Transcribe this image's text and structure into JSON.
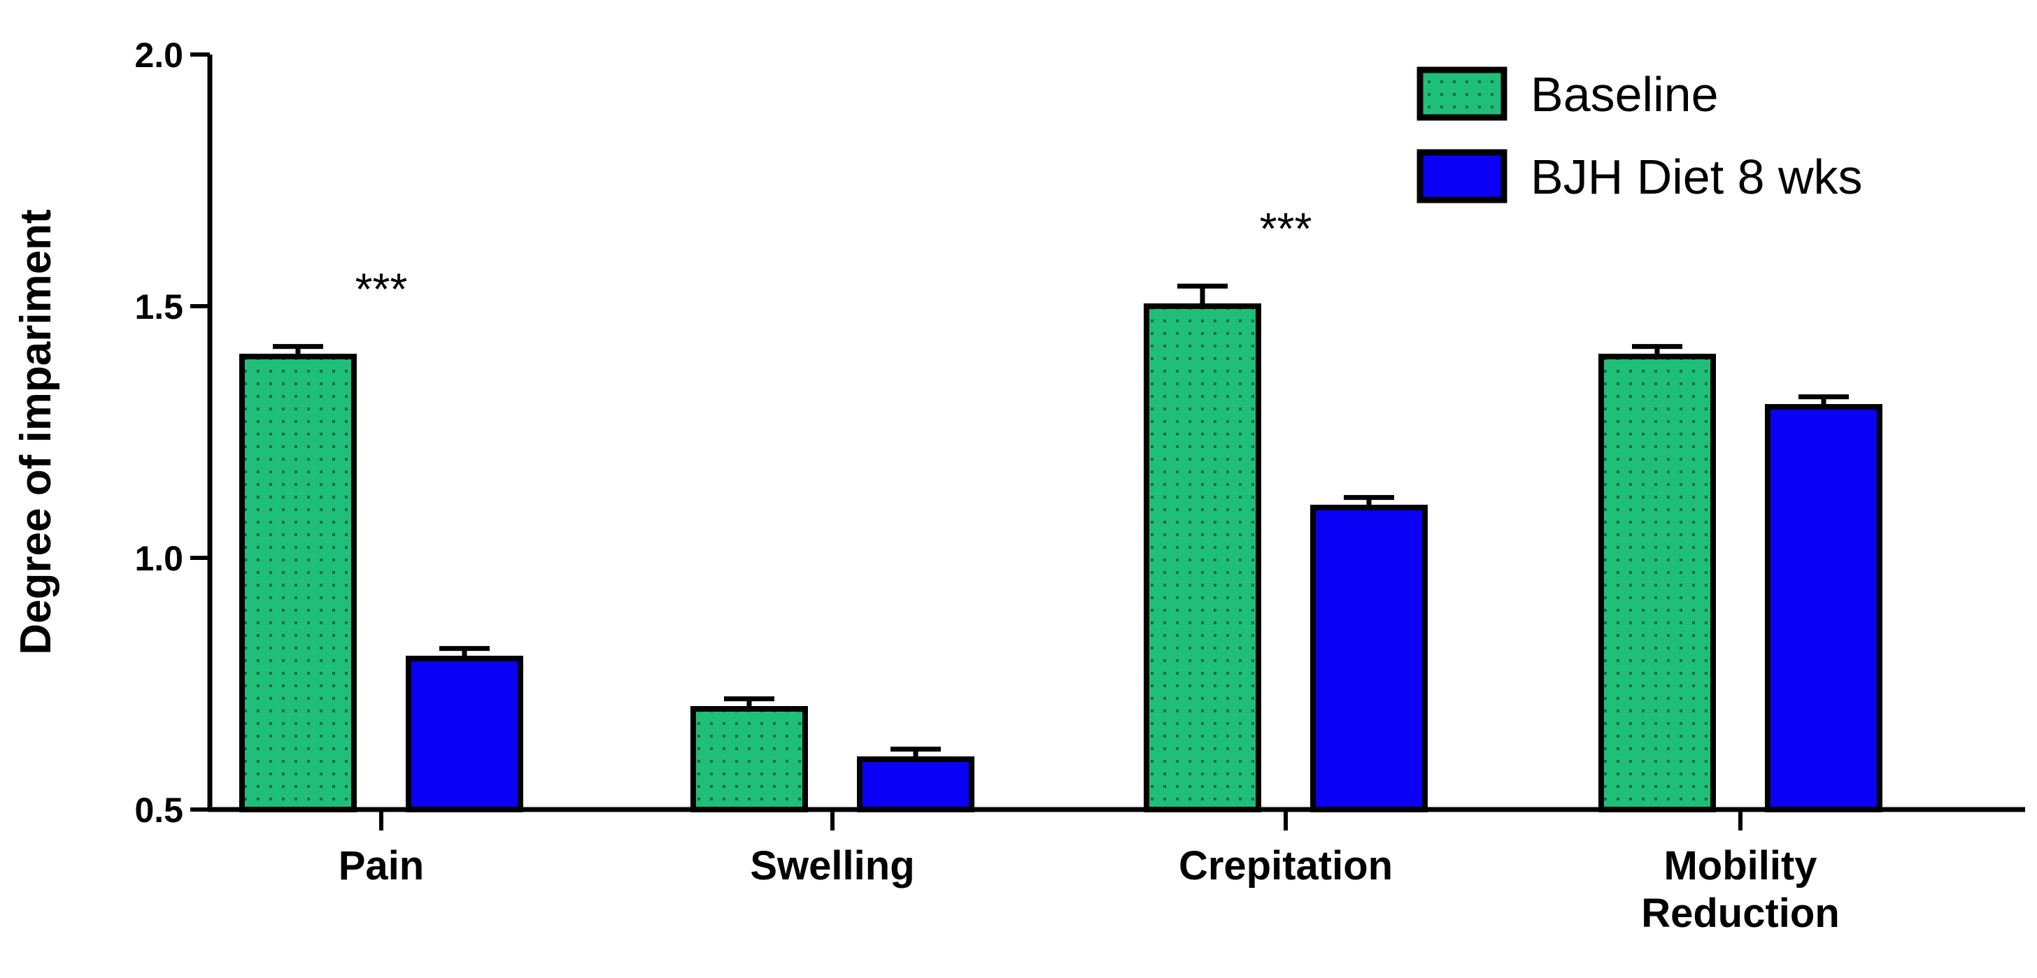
{
  "chart_data": {
    "type": "bar",
    "title": "",
    "xlabel": "",
    "ylabel": "Degree of impariment",
    "ylim": [
      0.5,
      2.0
    ],
    "yticks": [
      0.5,
      1.0,
      1.5,
      2.0
    ],
    "ytick_labels": [
      "0.5",
      "1.0",
      "1.5",
      "2.0"
    ],
    "categories": [
      [
        "Pain"
      ],
      [
        "Swelling"
      ],
      [
        "Crepitation"
      ],
      [
        "Mobility",
        "Reduction"
      ]
    ],
    "series": [
      {
        "name": "Baseline",
        "color": "#1fbf7a",
        "pattern": "dotted",
        "values": [
          1.4,
          0.7,
          1.5,
          1.4
        ],
        "errors": [
          0.02,
          0.02,
          0.04,
          0.02
        ]
      },
      {
        "name": "BJH Diet 8 wks",
        "color": "#0a00f5",
        "pattern": "solid",
        "values": [
          0.8,
          0.6,
          1.1,
          1.3
        ],
        "errors": [
          0.02,
          0.02,
          0.02,
          0.02
        ]
      }
    ],
    "annotations": [
      {
        "text": "***",
        "category_index": 0
      },
      {
        "text": "***",
        "category_index": 2
      }
    ],
    "legend_position": "top-right",
    "grid": false
  }
}
